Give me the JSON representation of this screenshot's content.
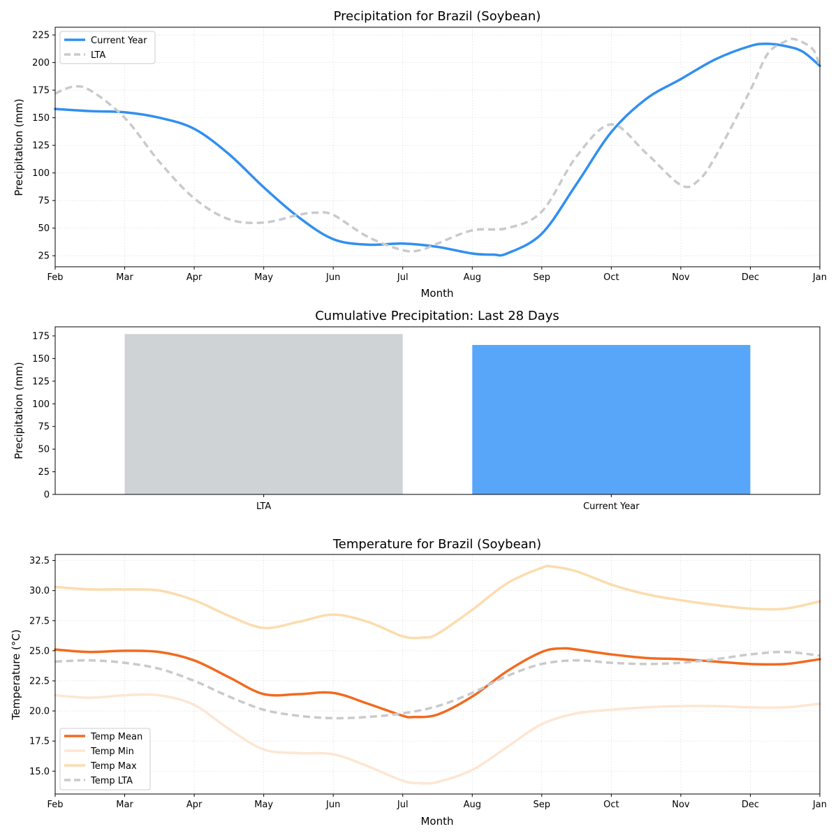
{
  "chart_data": [
    {
      "type": "line",
      "title": "Precipitation for Brazil (Soybean)",
      "xlabel": "Month",
      "ylabel": "Precipitation (mm)",
      "x_ticks": [
        "Feb",
        "Mar",
        "Apr",
        "May",
        "Jun",
        "Jul",
        "Aug",
        "Sep",
        "Oct",
        "Nov",
        "Dec",
        "Jan"
      ],
      "xlim": [
        0,
        11
      ],
      "ylim": [
        15,
        232
      ],
      "y_ticks": [
        25,
        50,
        75,
        100,
        125,
        150,
        175,
        200,
        225
      ],
      "grid": true,
      "legend": "upper-left",
      "series": [
        {
          "name": "Current Year",
          "color": "#318ff0",
          "style": "solid",
          "x": [
            0,
            0.5,
            1,
            1.5,
            2,
            2.5,
            3,
            3.5,
            4,
            4.5,
            5,
            5.5,
            6,
            6.3,
            6.5,
            7,
            7.5,
            8,
            8.5,
            9,
            9.5,
            10,
            10.25,
            10.5,
            10.75,
            11
          ],
          "values": [
            158,
            156,
            155,
            150,
            140,
            117,
            87,
            60,
            40,
            35,
            36,
            33,
            27,
            26,
            27,
            45,
            90,
            137,
            167,
            185,
            203,
            215,
            217,
            215,
            210,
            197
          ]
        },
        {
          "name": "LTA",
          "color": "#c8cacc",
          "style": "dashed",
          "x": [
            0,
            0.25,
            0.5,
            1,
            1.5,
            2,
            2.5,
            3,
            3.5,
            3.75,
            4,
            4.5,
            5,
            5.25,
            5.5,
            6,
            6.5,
            7,
            7.5,
            8,
            8.5,
            9,
            9.25,
            9.5,
            10,
            10.25,
            10.5,
            10.65,
            10.9,
            11
          ],
          "values": [
            172,
            178,
            175,
            150,
            110,
            77,
            58,
            55,
            62,
            64,
            62,
            42,
            30,
            30,
            36,
            48,
            50,
            65,
            115,
            144,
            118,
            89,
            93,
            115,
            175,
            208,
            219,
            221,
            212,
            196
          ]
        }
      ]
    },
    {
      "type": "bar",
      "title": "Cumulative Precipitation: Last 28 Days",
      "xlabel": "",
      "ylabel": "Precipitation (mm)",
      "categories": [
        "LTA",
        "Current Year"
      ],
      "values": [
        177,
        165
      ],
      "colors": [
        "#d0d3d6",
        "#58a6fa"
      ],
      "ylim": [
        0,
        185
      ],
      "y_ticks": [
        0,
        25,
        50,
        75,
        100,
        125,
        150,
        175
      ],
      "grid": false
    },
    {
      "type": "line",
      "title": "Temperature for Brazil (Soybean)",
      "xlabel": "Month",
      "ylabel": "Temperature (°C)",
      "x_ticks": [
        "Feb",
        "Mar",
        "Apr",
        "May",
        "Jun",
        "Jul",
        "Aug",
        "Sep",
        "Oct",
        "Nov",
        "Dec",
        "Jan"
      ],
      "xlim": [
        0,
        11
      ],
      "ylim": [
        13.1,
        33.0
      ],
      "y_ticks": [
        15.0,
        17.5,
        20.0,
        22.5,
        25.0,
        27.5,
        30.0,
        32.5
      ],
      "grid": true,
      "legend": "lower-left",
      "series": [
        {
          "name": "Temp Mean",
          "color": "#f26a1f",
          "style": "solid",
          "x": [
            0,
            0.5,
            1,
            1.5,
            2,
            2.5,
            3,
            3.5,
            4,
            4.5,
            5,
            5.15,
            5.5,
            6,
            6.5,
            7,
            7.3,
            7.5,
            8,
            8.5,
            9,
            9.5,
            10,
            10.5,
            11
          ],
          "values": [
            25.1,
            24.9,
            25.0,
            24.9,
            24.2,
            22.8,
            21.4,
            21.4,
            21.5,
            20.6,
            19.6,
            19.5,
            19.7,
            21.2,
            23.3,
            24.9,
            25.2,
            25.1,
            24.7,
            24.4,
            24.3,
            24.1,
            23.9,
            23.9,
            24.3
          ]
        },
        {
          "name": "Temp Min",
          "color": "#fde6d2",
          "style": "solid",
          "x": [
            0,
            0.5,
            1,
            1.5,
            2,
            2.5,
            3,
            3.5,
            4,
            4.5,
            5,
            5.25,
            5.5,
            6,
            6.5,
            7,
            7.5,
            8,
            8.5,
            9,
            9.5,
            10,
            10.5,
            11
          ],
          "values": [
            21.3,
            21.1,
            21.3,
            21.3,
            20.5,
            18.5,
            16.8,
            16.5,
            16.4,
            15.4,
            14.2,
            14.0,
            14.1,
            15.1,
            17.0,
            18.9,
            19.8,
            20.1,
            20.3,
            20.4,
            20.4,
            20.3,
            20.3,
            20.6
          ]
        },
        {
          "name": "Temp Max",
          "color": "#fcdcae",
          "style": "solid",
          "x": [
            0,
            0.5,
            1,
            1.5,
            2,
            2.5,
            3,
            3.5,
            4,
            4.5,
            5,
            5.3,
            5.5,
            6,
            6.5,
            7,
            7.15,
            7.5,
            8,
            8.5,
            9,
            9.5,
            10,
            10.5,
            11
          ],
          "values": [
            30.3,
            30.1,
            30.1,
            30.0,
            29.2,
            27.9,
            26.9,
            27.4,
            28.0,
            27.4,
            26.2,
            26.1,
            26.4,
            28.4,
            30.6,
            31.9,
            32.0,
            31.6,
            30.5,
            29.7,
            29.2,
            28.8,
            28.5,
            28.5,
            29.1
          ]
        },
        {
          "name": "Temp LTA",
          "color": "#c8cacc",
          "style": "dashed",
          "x": [
            0,
            0.5,
            1,
            1.5,
            2,
            2.5,
            3,
            3.5,
            4,
            4.5,
            5,
            5.5,
            6,
            6.5,
            7,
            7.5,
            8,
            8.5,
            9,
            9.5,
            10,
            10.5,
            11
          ],
          "values": [
            24.1,
            24.2,
            24.0,
            23.5,
            22.5,
            21.2,
            20.1,
            19.6,
            19.4,
            19.5,
            19.8,
            20.4,
            21.5,
            22.9,
            23.9,
            24.2,
            24.0,
            23.9,
            24.0,
            24.3,
            24.7,
            24.9,
            24.6
          ]
        }
      ]
    }
  ]
}
